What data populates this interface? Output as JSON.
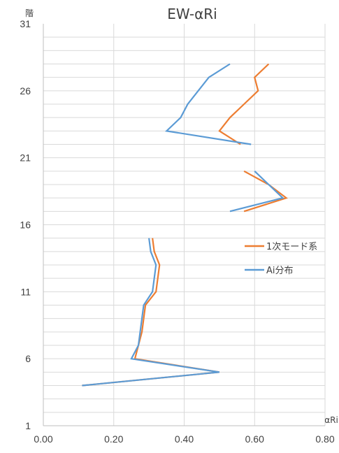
{
  "chart_data": {
    "type": "line",
    "title": "EW-αRi",
    "xlabel": "αRi",
    "ylabel": "階",
    "xlim": [
      0,
      0.8
    ],
    "ylim": [
      1,
      31
    ],
    "x_ticks": [
      "0.00",
      "0.20",
      "0.40",
      "0.60",
      "0.80"
    ],
    "y_ticks": [
      "1",
      "6",
      "11",
      "16",
      "21",
      "26",
      "31"
    ],
    "grid": true,
    "legend": "right",
    "series": [
      {
        "name": "1次モード系",
        "color": "#ED7D31",
        "points": [
          [
            0.11,
            4
          ],
          [
            0.5,
            5
          ],
          [
            0.26,
            6
          ],
          [
            0.27,
            7
          ],
          [
            0.28,
            8
          ],
          [
            0.285,
            9
          ],
          [
            0.29,
            10
          ],
          [
            0.32,
            11
          ],
          [
            0.325,
            12
          ],
          [
            0.33,
            13
          ],
          [
            0.315,
            14
          ],
          [
            0.31,
            15
          ],
          [
            null,
            null
          ],
          [
            0.57,
            17
          ],
          [
            0.69,
            18
          ],
          [
            0.64,
            19
          ],
          [
            0.57,
            20
          ],
          [
            null,
            null
          ],
          [
            0.56,
            22
          ],
          [
            0.5,
            23
          ],
          [
            0.53,
            24
          ],
          [
            0.57,
            25
          ],
          [
            0.61,
            26
          ],
          [
            0.6,
            27
          ],
          [
            0.64,
            28
          ]
        ]
      },
      {
        "name": "Ai分布",
        "color": "#5B9BD5",
        "points": [
          [
            0.11,
            4
          ],
          [
            0.5,
            5
          ],
          [
            0.25,
            6
          ],
          [
            0.27,
            7
          ],
          [
            0.275,
            8
          ],
          [
            0.28,
            9
          ],
          [
            0.285,
            10
          ],
          [
            0.31,
            11
          ],
          [
            0.315,
            12
          ],
          [
            0.32,
            13
          ],
          [
            0.305,
            14
          ],
          [
            0.3,
            15
          ],
          [
            null,
            null
          ],
          [
            0.53,
            17
          ],
          [
            0.68,
            18
          ],
          [
            0.64,
            19
          ],
          [
            0.6,
            20
          ],
          [
            null,
            null
          ],
          [
            0.59,
            22
          ],
          [
            0.35,
            23
          ],
          [
            0.39,
            24
          ],
          [
            0.41,
            25
          ],
          [
            0.44,
            26
          ],
          [
            0.47,
            27
          ],
          [
            0.53,
            28
          ]
        ]
      }
    ]
  }
}
